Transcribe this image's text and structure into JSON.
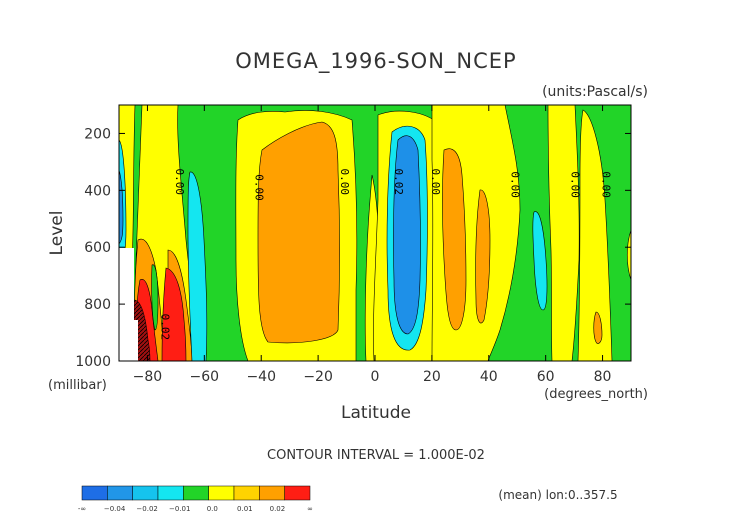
{
  "chart_data": {
    "type": "heatmap",
    "title": "OMEGA_1996-SON_NCEP",
    "units": "(units:Pascal/s)",
    "xlabel": "Latitude",
    "ylabel": "Level",
    "x_unit_label": "(degrees_north)",
    "y_unit_label": "(millibar)",
    "xlim": [
      -90,
      90
    ],
    "ylim": [
      1000,
      100
    ],
    "x_ticks": [
      -80,
      -60,
      -40,
      -20,
      0,
      20,
      40,
      60,
      80
    ],
    "x_tick_labels": [
      "−80",
      "−60",
      "−40",
      "−20",
      "0",
      "20",
      "40",
      "60",
      "80"
    ],
    "y_ticks": [
      200,
      400,
      600,
      800,
      1000
    ],
    "y_tick_labels": [
      "200",
      "400",
      "600",
      "800",
      "1000"
    ],
    "contour_interval_text": "CONTOUR INTERVAL = 1.000E-02",
    "footer_text": "(mean) lon:0..357.5",
    "contour_labels": [
      {
        "lat": -70,
        "level": 370,
        "text": "0.00"
      },
      {
        "lat": -42,
        "level": 390,
        "text": "0.00"
      },
      {
        "lat": -12,
        "level": 370,
        "text": "0.00"
      },
      {
        "lat": 7,
        "level": 370,
        "text": "0.02"
      },
      {
        "lat": 20,
        "level": 370,
        "text": "0.00"
      },
      {
        "lat": 48,
        "level": 380,
        "text": "0.00"
      },
      {
        "lat": 69,
        "level": 380,
        "text": "0.00"
      },
      {
        "lat": 80,
        "level": 380,
        "text": "0.00"
      },
      {
        "lat": -75,
        "level": 880,
        "text": "0.02"
      }
    ],
    "colorbar": {
      "colors": [
        "#1e6ee6",
        "#2196e8",
        "#15c3ee",
        "#14e6f0",
        "#22d428",
        "#ffff00",
        "#ffd300",
        "#ffa000",
        "#ff1e14"
      ],
      "labels": [
        "-∞",
        "−0.04",
        "−0.02",
        "−0.01",
        "0.0",
        "0.01",
        "0.02",
        "∞"
      ]
    },
    "palette": {
      "green": "#22d428",
      "yellow": "#ffff00",
      "orange": "#ffa000",
      "red": "#ff1e14",
      "cyan": "#14e6f0",
      "blue": "#1e90e8",
      "darkred": "#a01010"
    }
  }
}
